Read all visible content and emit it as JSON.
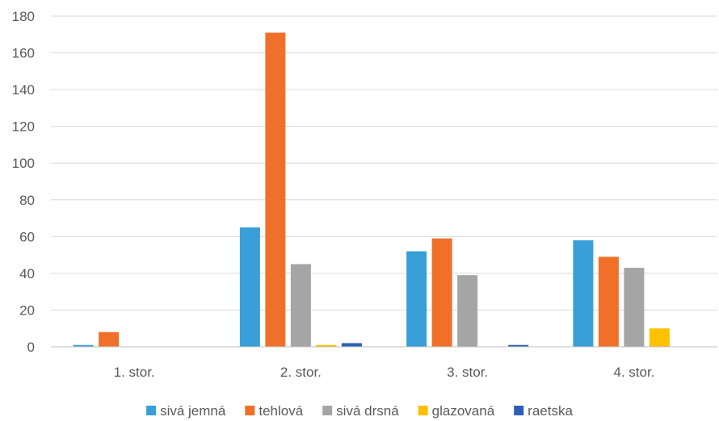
{
  "chart_data": {
    "type": "bar",
    "title": "",
    "xlabel": "",
    "ylabel": "",
    "categories": [
      "1. stor.",
      "2. stor.",
      "3. stor.",
      "4. stor."
    ],
    "series": [
      {
        "name": "sivá jemná",
        "color": "#389fd9",
        "values": [
          1,
          65,
          52,
          58
        ]
      },
      {
        "name": "tehlová",
        "color": "#f07029",
        "values": [
          8,
          171,
          59,
          49
        ]
      },
      {
        "name": "sivá drsná",
        "color": "#a5a5a5",
        "values": [
          0,
          45,
          39,
          43
        ]
      },
      {
        "name": "glazovaná",
        "color": "#ffc000",
        "values": [
          0,
          1,
          0,
          10
        ]
      },
      {
        "name": "raetska",
        "color": "#2e5fb5",
        "values": [
          0,
          2,
          1,
          0
        ]
      }
    ],
    "ylim": [
      0,
      180
    ],
    "yticks": [
      0,
      20,
      40,
      60,
      80,
      100,
      120,
      140,
      160,
      180
    ],
    "grid": true,
    "legend": "bottom"
  }
}
